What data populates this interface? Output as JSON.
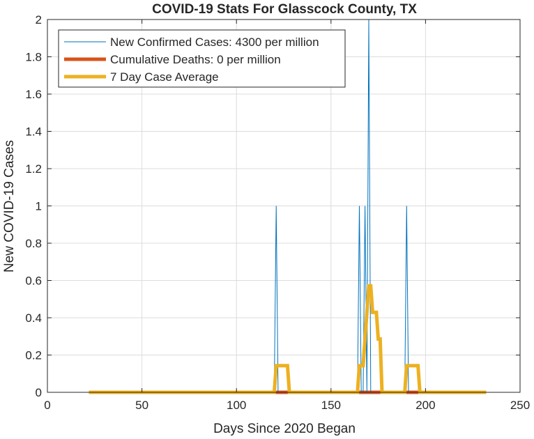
{
  "chart_data": {
    "type": "line",
    "title": "COVID-19 Stats For Glasscock County, TX",
    "xlabel": "Days Since 2020 Began",
    "ylabel": "New COVID-19 Cases",
    "xlim": [
      0,
      250
    ],
    "ylim": [
      0,
      2
    ],
    "xticks": [
      0,
      50,
      100,
      150,
      200,
      250
    ],
    "xtick_labels": [
      "0",
      "50",
      "100",
      "150",
      "200",
      "250"
    ],
    "yticks": [
      0,
      0.2,
      0.4,
      0.6,
      0.8,
      1,
      1.2,
      1.4,
      1.6,
      1.8,
      2
    ],
    "ytick_labels": [
      "0",
      "0.2",
      "0.4",
      "0.6",
      "0.8",
      "1",
      "1.2",
      "1.4",
      "1.6",
      "1.8",
      "2"
    ],
    "grid": true,
    "legend_position": "top-left",
    "series": [
      {
        "name": "New Confirmed Cases: 4300 per million",
        "color": "#0072BD",
        "style": "thin",
        "x": [
          22,
          120,
          121,
          122,
          164,
          165,
          166,
          167,
          168,
          169,
          170,
          171,
          172,
          189,
          190,
          191,
          232
        ],
        "y": [
          0,
          0,
          1,
          0,
          0,
          1,
          0,
          0,
          1,
          0,
          2,
          0,
          0,
          0,
          1,
          0,
          0
        ]
      },
      {
        "name": "Cumulative Deaths: 0 per million",
        "color": "#D95319",
        "style": "thick",
        "x": [
          22,
          232
        ],
        "y": [
          0,
          0
        ]
      },
      {
        "name": "7 Day Case Average",
        "color": "#EDB120",
        "style": "thick",
        "x": [
          22,
          120,
          121,
          122,
          127,
          128,
          164,
          165,
          167,
          168,
          170,
          171,
          172,
          174,
          175,
          176,
          177,
          189,
          190,
          196,
          197,
          232
        ],
        "y": [
          0,
          0,
          0.143,
          0.143,
          0.143,
          0,
          0,
          0.143,
          0.143,
          0.286,
          0.571,
          0.571,
          0.429,
          0.429,
          0.286,
          0.286,
          0,
          0,
          0.143,
          0.143,
          0,
          0
        ]
      }
    ]
  }
}
